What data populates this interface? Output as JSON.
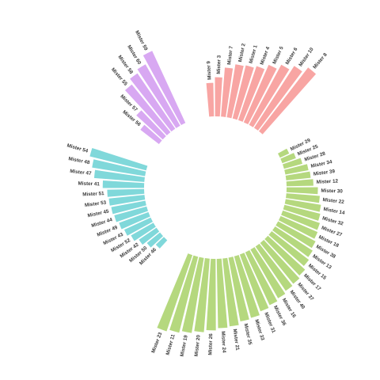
{
  "chart_data": {
    "type": "bar",
    "layout": "circular",
    "title": "",
    "groups": [
      {
        "name": "",
        "color": "#f8a5a3",
        "categories": [
          "Mister 9",
          "Mister 3",
          "Mister 7",
          "Mister 2",
          "Mister 1",
          "Mister 4",
          "Mister 5",
          "Mister 6",
          "Mister 10",
          "Mister 8"
        ],
        "values": [
          30,
          35,
          44,
          48,
          49,
          51,
          56,
          61,
          66,
          72
        ]
      },
      {
        "name": "",
        "color": "#b5d87e",
        "categories": [
          "Mister 29",
          "Mister 25",
          "Mister 28",
          "Mister 34",
          "Mister 39",
          "Mister 12",
          "Mister 30",
          "Mister 22",
          "Mister 14",
          "Mister 32",
          "Mister 27",
          "Mister 18",
          "Mister 38",
          "Mister 13",
          "Mister 15",
          "Mister 17",
          "Mister 37",
          "Mister 40",
          "Mister 16",
          "Mister 36",
          "Mister 31",
          "Mister 33",
          "Mister 35",
          "Mister 21",
          "Mister 24",
          "Mister 26",
          "Mister 20",
          "Mister 19",
          "Mister 11",
          "Mister 23"
        ],
        "values": [
          9,
          13,
          17,
          21,
          22,
          24,
          28,
          30,
          32,
          33,
          35,
          36,
          38,
          40,
          42,
          45,
          47,
          48,
          50,
          52,
          54,
          57,
          58,
          61,
          62,
          64,
          66,
          68,
          70,
          72
        ]
      },
      {
        "name": "",
        "color": "#80d8da",
        "categories": [
          "Mister 46",
          "Mister 50",
          "Mister 42",
          "Mister 52",
          "Mister 43",
          "Mister 49",
          "Mister 44",
          "Mister 45",
          "Mister 53",
          "Mister 51",
          "Mister 41",
          "Mister 47",
          "Mister 48",
          "Mister 54"
        ],
        "values": [
          10,
          15,
          19,
          23,
          26,
          28,
          30,
          31,
          32,
          33,
          37,
          45,
          48,
          52
        ]
      },
      {
        "name": "",
        "color": "#d8a8f2",
        "categories": [
          "Mister 56",
          "Mister 57",
          "Mister 55",
          "Mister 58",
          "Mister 60",
          "Mister 59"
        ],
        "values": [
          21,
          32,
          55,
          60,
          63,
          71
        ]
      }
    ],
    "axis": {
      "min": 0,
      "max": 80,
      "grid": false,
      "legend": "none"
    }
  }
}
